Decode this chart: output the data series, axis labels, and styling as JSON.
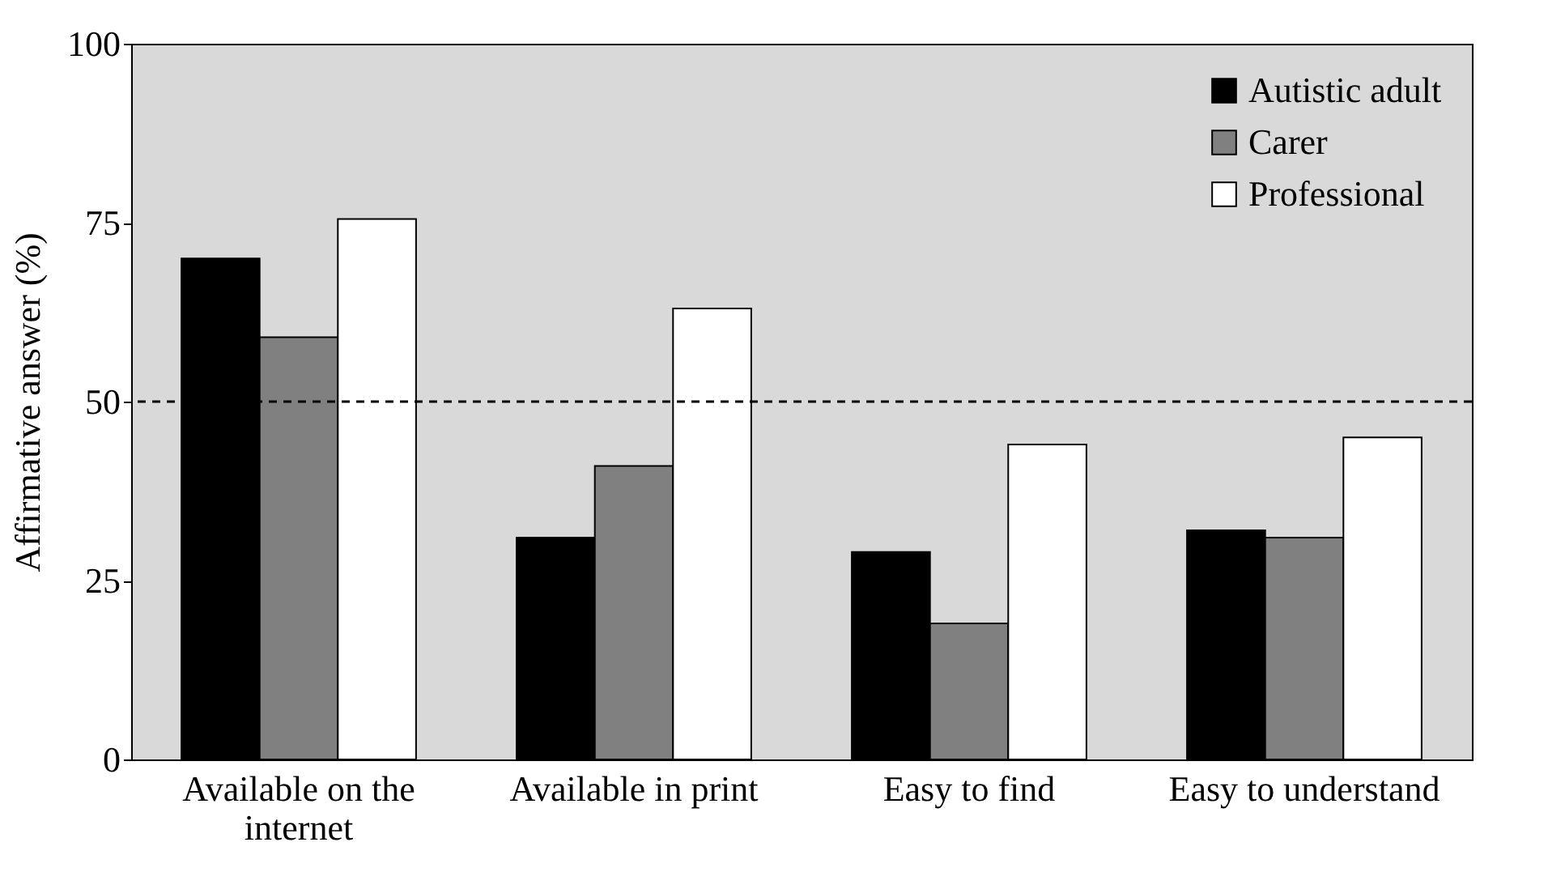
{
  "chart_data": {
    "type": "bar",
    "ylabel": "Affirmative answer (%)",
    "categories": [
      "Available on the internet",
      "Available in print",
      "Easy to find",
      "Easy to understand"
    ],
    "series": [
      {
        "name": "Autistic adult",
        "color": "#000000",
        "values": [
          70,
          31,
          29,
          32
        ]
      },
      {
        "name": "Carer",
        "color": "#808080",
        "values": [
          59,
          41,
          19,
          31
        ]
      },
      {
        "name": "Professional",
        "color": "#ffffff",
        "values": [
          75.5,
          63,
          44,
          45
        ]
      }
    ],
    "ylim": [
      0,
      100
    ],
    "yticks": [
      0,
      25,
      50,
      75,
      100
    ],
    "grid": false,
    "legend": "top right",
    "ref_lines": [
      {
        "axis": "y",
        "value": 50,
        "color": "#000000",
        "line_style": "dashed"
      }
    ]
  }
}
